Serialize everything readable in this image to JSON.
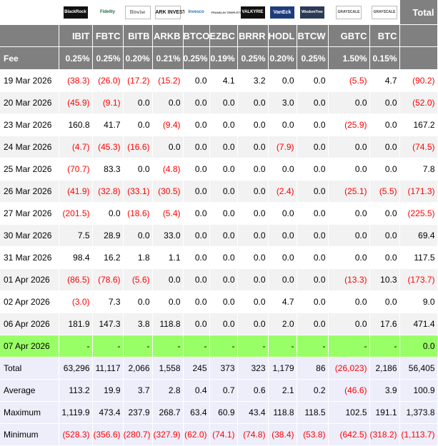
{
  "logos": [
    {
      "icon": "blackrock-logo-icon",
      "text": "BlackRock"
    },
    {
      "icon": "fidelity-logo-icon",
      "text": "Fidelity"
    },
    {
      "icon": "bitwise-logo-icon",
      "text": "Bitwise"
    },
    {
      "icon": "ark-invest-logo-icon",
      "text": "ARK INVEST"
    },
    {
      "icon": "invesco-logo-icon",
      "text": "Invesco"
    },
    {
      "icon": "franklin-templeton-logo-icon",
      "text": "FRANKLIN TEMPLETON"
    },
    {
      "icon": "valkyrie-logo-icon",
      "text": "VALKYRIE"
    },
    {
      "icon": "vaneck-logo-icon",
      "text": "VanEck"
    },
    {
      "icon": "wisdomtree-logo-icon",
      "text": "WisdomTree"
    },
    {
      "icon": "grayscale-logo-icon",
      "text": "GRAYSCALE"
    },
    {
      "icon": "grayscale-logo-icon",
      "text": "GRAYSCALE"
    }
  ],
  "total_header": "Total",
  "tickers": [
    "IBIT",
    "FBTC",
    "BITB",
    "ARKB",
    "BTCO",
    "EZBC",
    "BRRR",
    "HODL",
    "BTCW",
    "GBTC",
    "BTC"
  ],
  "fee_label": "Fee",
  "fees": [
    "0.25%",
    "0.25%",
    "0.20%",
    "0.21%",
    "0.25%",
    "0.19%",
    "0.25%",
    "0.20%",
    "0.25%",
    "1.50%",
    "0.15%"
  ],
  "rows": [
    {
      "date": "19 Mar 2026",
      "values": [
        "(38.3)",
        "(26.0)",
        "(17.2)",
        "(15.2)",
        "0.0",
        "4.1",
        "3.2",
        "0.0",
        "0.0",
        "(5.5)",
        "4.7"
      ],
      "total": "(90.2)"
    },
    {
      "date": "20 Mar 2026",
      "values": [
        "(45.9)",
        "(9.1)",
        "0.0",
        "0.0",
        "0.0",
        "0.0",
        "0.0",
        "3.0",
        "0.0",
        "0.0",
        "0.0"
      ],
      "total": "(52.0)"
    },
    {
      "date": "23 Mar 2026",
      "values": [
        "160.8",
        "41.7",
        "0.0",
        "(9.4)",
        "0.0",
        "0.0",
        "0.0",
        "0.0",
        "0.0",
        "(25.9)",
        "0.0"
      ],
      "total": "167.2"
    },
    {
      "date": "24 Mar 2026",
      "values": [
        "(4.7)",
        "(45.3)",
        "(16.6)",
        "0.0",
        "0.0",
        "0.0",
        "0.0",
        "(7.9)",
        "0.0",
        "0.0",
        "0.0"
      ],
      "total": "(74.5)"
    },
    {
      "date": "25 Mar 2026",
      "values": [
        "(70.7)",
        "83.3",
        "0.0",
        "(4.8)",
        "0.0",
        "0.0",
        "0.0",
        "0.0",
        "0.0",
        "0.0",
        "0.0"
      ],
      "total": "7.8"
    },
    {
      "date": "26 Mar 2026",
      "values": [
        "(41.9)",
        "(32.8)",
        "(33.1)",
        "(30.5)",
        "0.0",
        "0.0",
        "0.0",
        "(2.4)",
        "0.0",
        "(25.1)",
        "(5.5)"
      ],
      "total": "(171.3)"
    },
    {
      "date": "27 Mar 2026",
      "values": [
        "(201.5)",
        "0.0",
        "(18.6)",
        "(5.4)",
        "0.0",
        "0.0",
        "0.0",
        "0.0",
        "0.0",
        "0.0",
        "0.0"
      ],
      "total": "(225.5)"
    },
    {
      "date": "30 Mar 2026",
      "values": [
        "7.5",
        "28.9",
        "0.0",
        "33.0",
        "0.0",
        "0.0",
        "0.0",
        "0.0",
        "0.0",
        "0.0",
        "0.0"
      ],
      "total": "69.4"
    },
    {
      "date": "31 Mar 2026",
      "values": [
        "98.4",
        "16.2",
        "1.8",
        "1.1",
        "0.0",
        "0.0",
        "0.0",
        "0.0",
        "0.0",
        "0.0",
        "0.0"
      ],
      "total": "117.5"
    },
    {
      "date": "01 Apr 2026",
      "values": [
        "(86.5)",
        "(78.6)",
        "(5.6)",
        "0.0",
        "0.0",
        "0.0",
        "0.0",
        "0.0",
        "0.0",
        "(13.3)",
        "10.3"
      ],
      "total": "(173.7)"
    },
    {
      "date": "02 Apr 2026",
      "values": [
        "(3.0)",
        "7.3",
        "0.0",
        "0.0",
        "0.0",
        "0.0",
        "0.0",
        "4.7",
        "0.0",
        "0.0",
        "0.0"
      ],
      "total": "9.0"
    },
    {
      "date": "06 Apr 2026",
      "values": [
        "181.9",
        "147.3",
        "3.8",
        "118.8",
        "0.0",
        "0.0",
        "0.0",
        "2.0",
        "0.0",
        "0.0",
        "17.6"
      ],
      "total": "471.4"
    },
    {
      "date": "07 Apr 2026",
      "values": [
        "-",
        "-",
        "-",
        "-",
        "-",
        "-",
        "-",
        "-",
        "-",
        "-",
        "-"
      ],
      "total": "0.0",
      "highlight": true
    }
  ],
  "summary": [
    {
      "label": "Total",
      "values": [
        "63,296",
        "11,117",
        "2,066",
        "1,558",
        "245",
        "373",
        "323",
        "1,179",
        "86",
        "(26,023)",
        "2,186"
      ],
      "total": "56,405"
    },
    {
      "label": "Average",
      "values": [
        "113.2",
        "19.9",
        "3.7",
        "2.8",
        "0.4",
        "0.7",
        "0.6",
        "2.1",
        "0.2",
        "(46.6)",
        "3.9"
      ],
      "total": "100.9"
    },
    {
      "label": "Maximum",
      "values": [
        "1,119.9",
        "473.4",
        "237.9",
        "268.7",
        "63.4",
        "60.9",
        "43.4",
        "118.8",
        "118.5",
        "102.5",
        "191.1"
      ],
      "total": "1,373.8"
    },
    {
      "label": "Minimum",
      "values": [
        "(528.3)",
        "(356.6)",
        "(280.7)",
        "(327.9)",
        "(62.0)",
        "(74.1)",
        "(74.8)",
        "(38.4)",
        "(53.8)",
        "(642.5)",
        "(318.2)"
      ],
      "total": "(1,113.7)"
    }
  ],
  "colors": {
    "header_bg": "#808080",
    "alt_row_bg": "#f2f2f2",
    "highlight_bg": "#99ff66",
    "summary_bg": "#eeeefb",
    "negative": "#ff0000"
  }
}
